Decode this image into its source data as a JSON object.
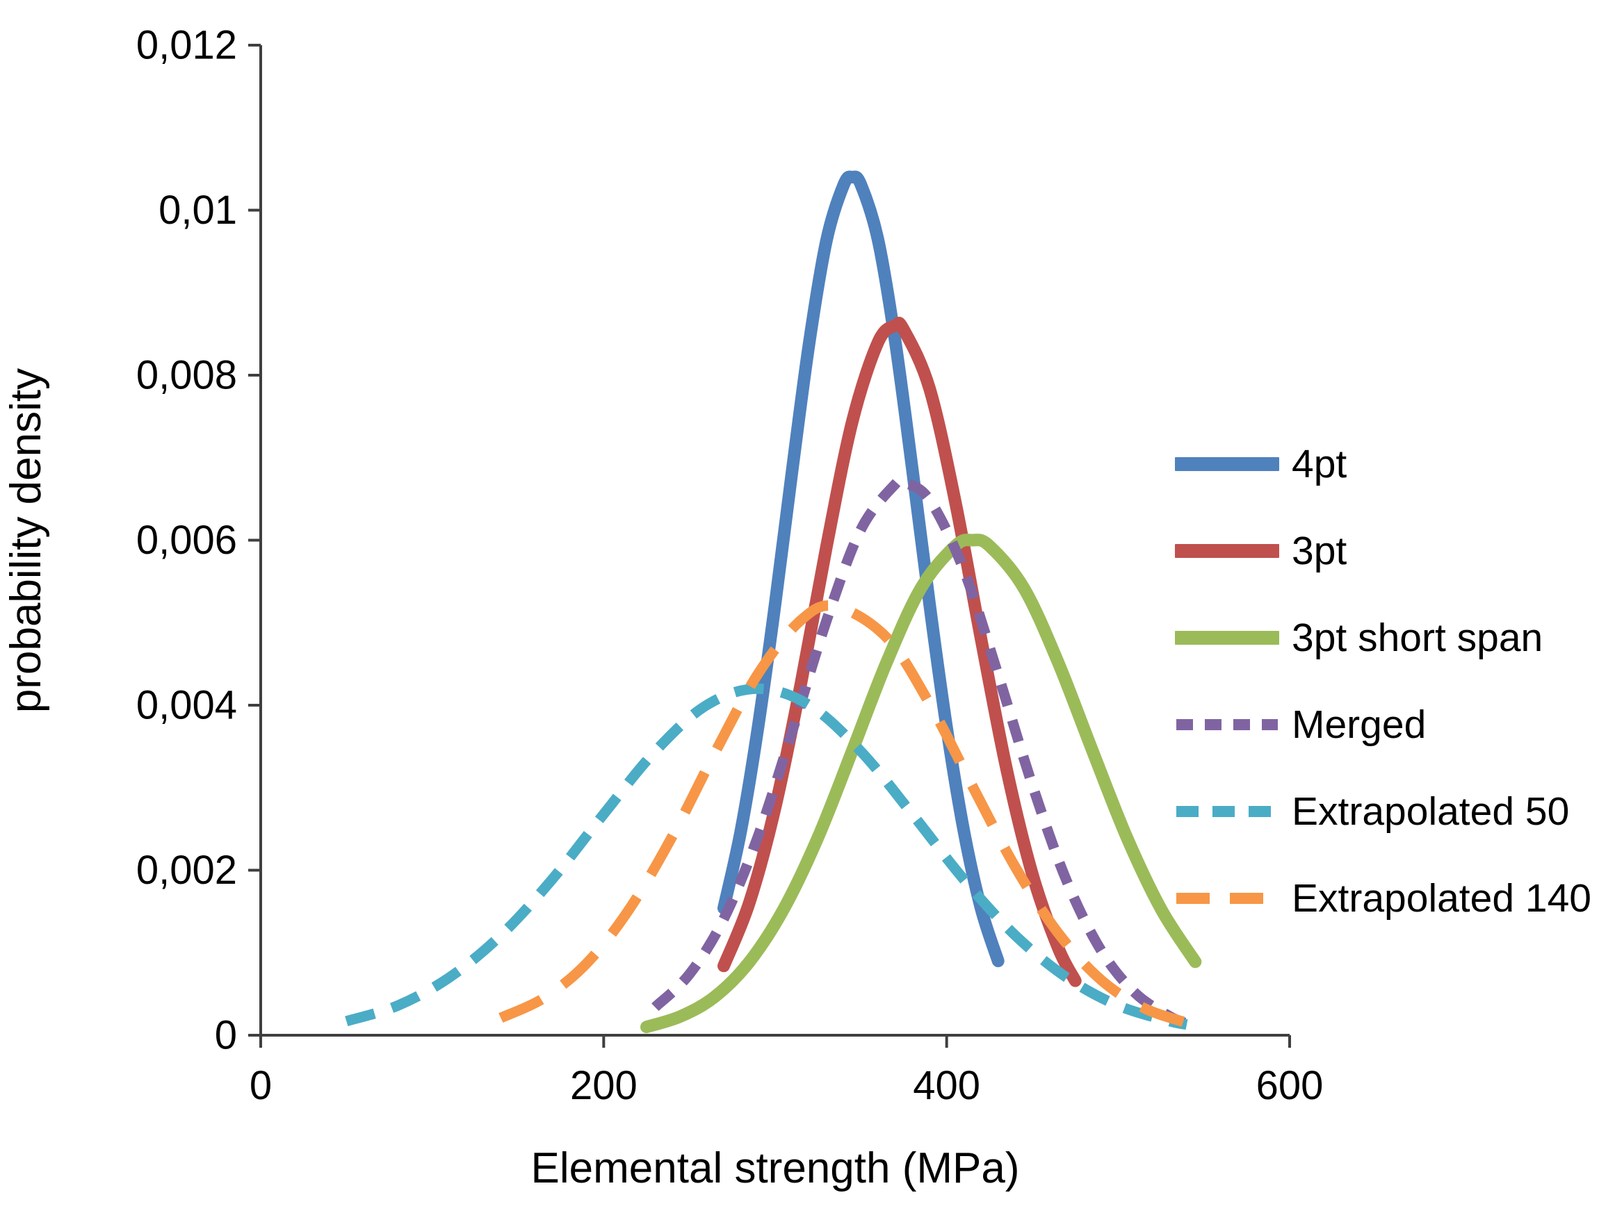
{
  "chart_data": {
    "type": "line",
    "title": "",
    "xlabel": "Elemental strength (MPa)",
    "ylabel": "probability density",
    "xlim": [
      0,
      600
    ],
    "ylim": [
      0,
      0.012
    ],
    "grid": false,
    "legend_position": "right",
    "axis_color": "#3f3f3f",
    "x_ticks": [
      {
        "value": 0,
        "label": "0"
      },
      {
        "value": 200,
        "label": "200"
      },
      {
        "value": 400,
        "label": "400"
      },
      {
        "value": 600,
        "label": "600"
      }
    ],
    "y_ticks": [
      {
        "value": 0,
        "label": "0"
      },
      {
        "value": 0.002,
        "label": "0,002"
      },
      {
        "value": 0.004,
        "label": "0,004"
      },
      {
        "value": 0.006,
        "label": "0,006"
      },
      {
        "value": 0.008,
        "label": "0,008"
      },
      {
        "value": 0.01,
        "label": "0,01"
      },
      {
        "value": 0.012,
        "label": "0,012"
      }
    ],
    "series": [
      {
        "name": "4pt",
        "color": "#4F81BD",
        "style": "solid",
        "dash": null,
        "peak": {
          "x": 345,
          "y": 0.0104
        },
        "points": [
          [
            270,
            0.00154
          ],
          [
            280,
            0.00248
          ],
          [
            290,
            0.00373
          ],
          [
            300,
            0.00523
          ],
          [
            310,
            0.00686
          ],
          [
            320,
            0.00841
          ],
          [
            330,
            0.00964
          ],
          [
            340,
            0.01031
          ],
          [
            345,
            0.0104
          ],
          [
            350,
            0.01031
          ],
          [
            360,
            0.00964
          ],
          [
            370,
            0.00841
          ],
          [
            380,
            0.00686
          ],
          [
            390,
            0.00523
          ],
          [
            400,
            0.00373
          ],
          [
            410,
            0.00248
          ],
          [
            420,
            0.00154
          ],
          [
            430,
            0.0009
          ]
        ]
      },
      {
        "name": "3pt",
        "color": "#C0504D",
        "style": "solid",
        "dash": null,
        "peak": {
          "x": 370,
          "y": 0.0086
        },
        "points": [
          [
            270,
            0.00084
          ],
          [
            285,
            0.00161
          ],
          [
            300,
            0.00276
          ],
          [
            315,
            0.00426
          ],
          [
            330,
            0.00593
          ],
          [
            345,
            0.00744
          ],
          [
            360,
            0.0084
          ],
          [
            370,
            0.0086
          ],
          [
            375,
            0.00855
          ],
          [
            390,
            0.00784
          ],
          [
            405,
            0.00647
          ],
          [
            420,
            0.00481
          ],
          [
            435,
            0.00322
          ],
          [
            450,
            0.00195
          ],
          [
            465,
            0.00106
          ],
          [
            475,
            0.00066
          ]
        ]
      },
      {
        "name": "3pt short span",
        "color": "#9BBB59",
        "style": "solid",
        "dash": null,
        "peak": {
          "x": 415,
          "y": 0.006
        },
        "points": [
          [
            225,
            0.0001
          ],
          [
            245,
            0.00023
          ],
          [
            265,
            0.00047
          ],
          [
            285,
            0.00089
          ],
          [
            305,
            0.00153
          ],
          [
            325,
            0.0024
          ],
          [
            345,
            0.00345
          ],
          [
            365,
            0.00452
          ],
          [
            385,
            0.00542
          ],
          [
            405,
            0.00593
          ],
          [
            415,
            0.006
          ],
          [
            425,
            0.00593
          ],
          [
            445,
            0.00542
          ],
          [
            465,
            0.00452
          ],
          [
            485,
            0.00345
          ],
          [
            505,
            0.0024
          ],
          [
            525,
            0.00153
          ],
          [
            545,
            0.00089
          ]
        ]
      },
      {
        "name": "Merged",
        "color": "#8064A2",
        "style": "dashed",
        "dash": "32 22",
        "peak": {
          "x": 375,
          "y": 0.0067
        },
        "points": [
          [
            230,
            0.00034
          ],
          [
            250,
            0.00074
          ],
          [
            270,
            0.00141
          ],
          [
            290,
            0.00241
          ],
          [
            310,
            0.00369
          ],
          [
            330,
            0.00503
          ],
          [
            350,
            0.00613
          ],
          [
            370,
            0.00668
          ],
          [
            375,
            0.0067
          ],
          [
            390,
            0.00649
          ],
          [
            410,
            0.00564
          ],
          [
            430,
            0.00437
          ],
          [
            450,
            0.00303
          ],
          [
            470,
            0.00187
          ],
          [
            490,
            0.00103
          ],
          [
            510,
            0.00051
          ],
          [
            530,
            0.00023
          ],
          [
            540,
            0.00014
          ]
        ]
      },
      {
        "name": "Extrapolated 50",
        "color": "#4BACC6",
        "style": "dashed",
        "dash": "42 26",
        "peak": {
          "x": 290,
          "y": 0.0042
        },
        "points": [
          [
            50,
            0.00017
          ],
          [
            80,
            0.00036
          ],
          [
            110,
            0.0007
          ],
          [
            140,
            0.00121
          ],
          [
            170,
            0.00189
          ],
          [
            200,
            0.00268
          ],
          [
            230,
            0.00344
          ],
          [
            260,
            0.004
          ],
          [
            290,
            0.0042
          ],
          [
            320,
            0.004
          ],
          [
            350,
            0.00344
          ],
          [
            380,
            0.00268
          ],
          [
            410,
            0.00189
          ],
          [
            440,
            0.00121
          ],
          [
            470,
            0.0007
          ],
          [
            500,
            0.00036
          ],
          [
            530,
            0.00017
          ],
          [
            540,
            0.00013
          ]
        ]
      },
      {
        "name": "Extrapolated 140",
        "color": "#F79646",
        "style": "dashed",
        "dash": "64 38",
        "peak": {
          "x": 335,
          "y": 0.0052
        },
        "points": [
          [
            140,
            0.00021
          ],
          [
            165,
            0.00045
          ],
          [
            190,
            0.00087
          ],
          [
            215,
            0.00153
          ],
          [
            240,
            0.00241
          ],
          [
            265,
            0.00343
          ],
          [
            290,
            0.00438
          ],
          [
            315,
            0.00503
          ],
          [
            335,
            0.0052
          ],
          [
            365,
            0.00482
          ],
          [
            390,
            0.00402
          ],
          [
            415,
            0.00302
          ],
          [
            440,
            0.00204
          ],
          [
            465,
            0.00124
          ],
          [
            490,
            0.00067
          ],
          [
            515,
            0.00033
          ],
          [
            540,
            0.00015
          ]
        ]
      }
    ]
  }
}
